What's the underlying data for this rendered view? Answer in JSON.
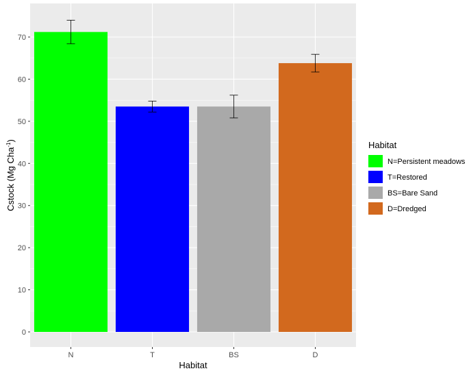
{
  "chart_data": {
    "type": "bar",
    "categories": [
      "N",
      "T",
      "BS",
      "D"
    ],
    "values": [
      71.2,
      53.5,
      53.5,
      63.8
    ],
    "error_low": [
      68.4,
      52.2,
      50.8,
      61.7
    ],
    "error_high": [
      74.0,
      54.8,
      56.2,
      65.9
    ],
    "colors": [
      "#00FF00",
      "#0000FF",
      "#A9A9A9",
      "#D2691E"
    ],
    "xlabel": "Habitat",
    "ylabel_base": "Cstock (Mg Cha",
    "ylabel_sup": "-1",
    "ylabel_close": ")",
    "ylim": [
      -4,
      78
    ],
    "yticks": [
      0,
      10,
      20,
      30,
      40,
      50,
      60,
      70
    ],
    "grid": true,
    "legend": {
      "title": "Habitat",
      "position": "right",
      "entries": [
        "N=Persistent meadows",
        "T=Restored",
        "BS=Bare Sand",
        "D=Dredged"
      ]
    }
  }
}
